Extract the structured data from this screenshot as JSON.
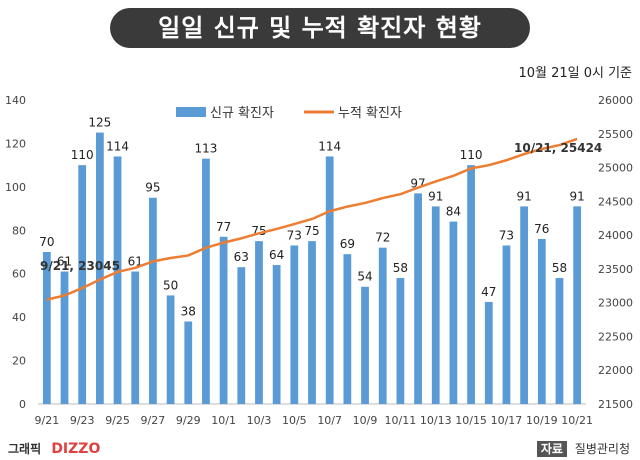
{
  "header": {
    "title": "일일 신규 및 누적 확진자 현황"
  },
  "subtitle": "10월 21일 0시 기준",
  "chart_data": {
    "type": "bar",
    "categories": [
      "9/21",
      "9/22",
      "9/23",
      "9/24",
      "9/25",
      "9/26",
      "9/27",
      "9/28",
      "9/29",
      "9/30",
      "10/1",
      "10/2",
      "10/3",
      "10/4",
      "10/5",
      "10/6",
      "10/7",
      "10/8",
      "10/9",
      "10/10",
      "10/11",
      "10/12",
      "10/13",
      "10/14",
      "10/15",
      "10/16",
      "10/17",
      "10/18",
      "10/19",
      "10/20",
      "10/21"
    ],
    "x_tick_labels": [
      "9/21",
      "9/23",
      "9/25",
      "9/27",
      "9/29",
      "10/1",
      "10/3",
      "10/5",
      "10/7",
      "10/9",
      "10/11",
      "10/13",
      "10/15",
      "10/17",
      "10/19",
      "10/21"
    ],
    "series": [
      {
        "name": "신규 확진자",
        "type": "bar",
        "axis": "left",
        "color": "#5b9bd5",
        "values": [
          70,
          61,
          110,
          125,
          114,
          61,
          95,
          50,
          38,
          113,
          77,
          63,
          75,
          64,
          73,
          75,
          114,
          69,
          54,
          72,
          58,
          97,
          91,
          84,
          110,
          47,
          73,
          91,
          76,
          58,
          91
        ]
      },
      {
        "name": "누적 확진자",
        "type": "line",
        "axis": "right",
        "color": "#ed7d31",
        "values": [
          23045,
          23106,
          23216,
          23341,
          23455,
          23516,
          23611,
          23661,
          23699,
          23812,
          23889,
          23952,
          24027,
          24091,
          24164,
          24239,
          24353,
          24422,
          24476,
          24548,
          24606,
          24703,
          24794,
          24878,
          24988,
          25035,
          25108,
          25199,
          25275,
          25333,
          25424
        ]
      }
    ],
    "y_left": {
      "min": 0,
      "max": 140,
      "step": 20
    },
    "y_right": {
      "min": 21500,
      "max": 26000,
      "step": 500
    },
    "annotations": [
      {
        "label": "9/21, 23045"
      },
      {
        "label": "10/21, 25424"
      }
    ],
    "legend": "top"
  },
  "footer": {
    "graphic_label": "그래픽",
    "brand": "DIZZO",
    "source_tag": "자료",
    "source": "질병관리청"
  }
}
